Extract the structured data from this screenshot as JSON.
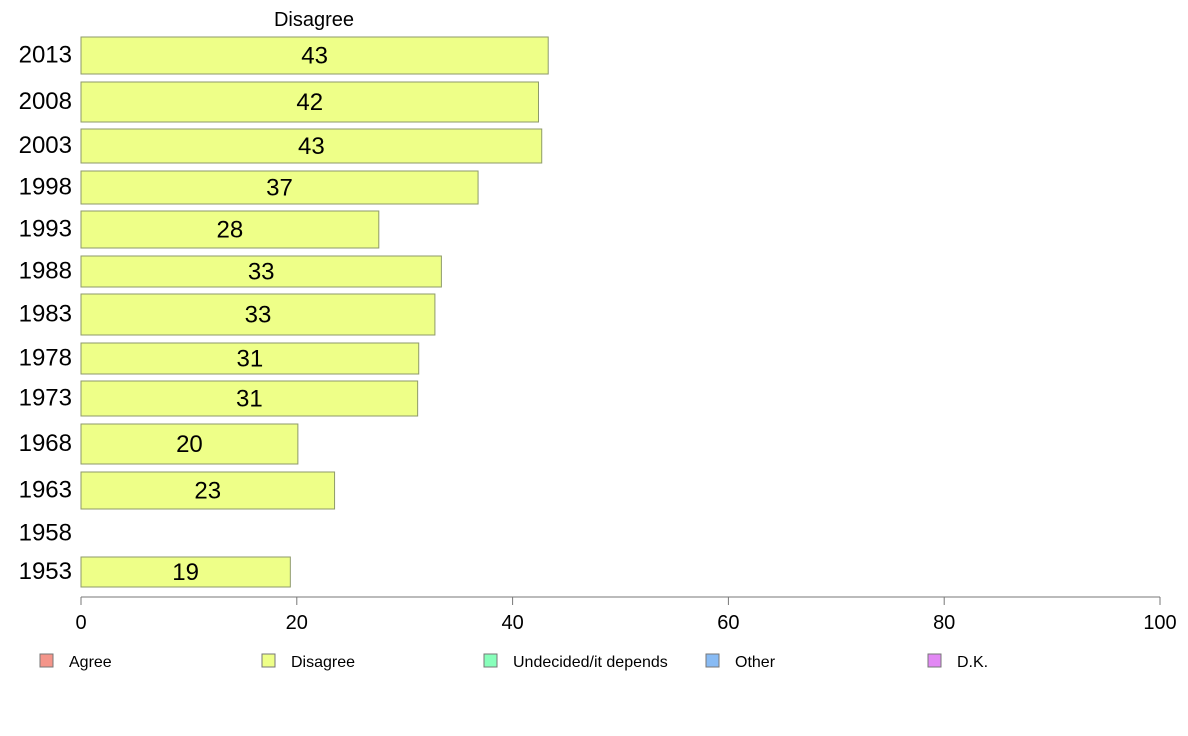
{
  "chart_data": {
    "type": "bar",
    "orientation": "horizontal",
    "title": "Disagree",
    "categories": [
      "2013",
      "2008",
      "2003",
      "1998",
      "1993",
      "1988",
      "1983",
      "1978",
      "1973",
      "1968",
      "1963",
      "1958",
      "1953"
    ],
    "series": [
      {
        "name": "Disagree",
        "values": [
          43.3,
          42.4,
          42.7,
          36.8,
          27.6,
          33.4,
          32.8,
          31.3,
          31.2,
          20.1,
          23.5,
          null,
          19.4
        ],
        "labels": [
          "43",
          "42",
          "43",
          "37",
          "28",
          "33",
          "33",
          "31",
          "31",
          "20",
          "23",
          "",
          "19"
        ],
        "color": "#EEFF88"
      }
    ],
    "xlim": [
      0,
      100
    ],
    "xticks": [
      "0",
      "20",
      "40",
      "60",
      "80",
      "100"
    ],
    "grid": false,
    "legend": {
      "placement": "bottom",
      "items": [
        {
          "label": "Agree",
          "color": "#F4958A"
        },
        {
          "label": "Disagree",
          "color": "#EEFF88"
        },
        {
          "label": "Undecided/it depends",
          "color": "#88FFBB"
        },
        {
          "label": "Other",
          "color": "#88BBF4"
        },
        {
          "label": "D.K.",
          "color": "#E288F4"
        }
      ]
    }
  }
}
